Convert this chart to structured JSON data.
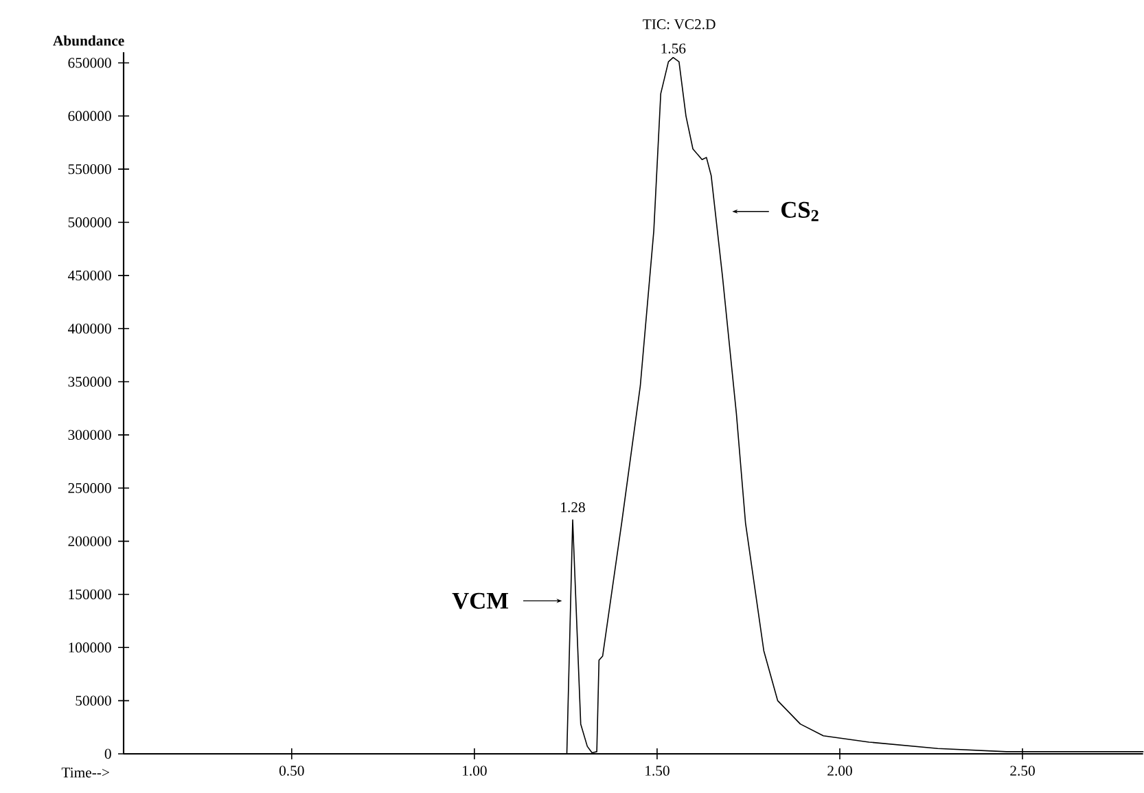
{
  "chart_data": {
    "type": "line",
    "title": "TIC: VC2.D",
    "xlabel": "Time-->",
    "ylabel": "Abundance",
    "x": [
      0.04,
      1.253,
      1.269,
      1.291,
      1.309,
      1.322,
      1.335,
      1.341,
      1.351,
      1.403,
      1.454,
      1.491,
      1.51,
      1.531,
      1.544,
      1.56,
      1.579,
      1.598,
      1.623,
      1.635,
      1.648,
      1.679,
      1.717,
      1.742,
      1.792,
      1.83,
      1.892,
      1.955,
      2.08,
      2.268,
      2.456,
      2.83
    ],
    "series": [
      {
        "color": "#000000",
        "values": [
          0,
          0,
          220000,
          28000,
          7000,
          1000,
          2000,
          88000,
          92000,
          217000,
          346000,
          492000,
          621000,
          651000,
          655000,
          651000,
          600000,
          569000,
          559000,
          561000,
          544000,
          449000,
          320000,
          217000,
          97000,
          50000,
          28000,
          17000,
          11000,
          5000,
          2000,
          2000
        ]
      }
    ],
    "xlim": [
      0.04,
      2.83
    ],
    "ylim": [
      0,
      660000
    ],
    "xticks": [
      {
        "value": 0.5,
        "label": "0.50"
      },
      {
        "value": 1.0,
        "label": "1.00"
      },
      {
        "value": 1.5,
        "label": "1.50"
      },
      {
        "value": 2.0,
        "label": "2.00"
      },
      {
        "value": 2.5,
        "label": "2.50"
      }
    ],
    "yticks": [
      0,
      50000,
      100000,
      150000,
      200000,
      250000,
      300000,
      350000,
      400000,
      450000,
      500000,
      550000,
      600000,
      650000
    ],
    "annotations": [
      {
        "text": "1.28",
        "x": 1.269,
        "y": 220000
      },
      {
        "text": "1.56",
        "x": 1.544,
        "y": 655000
      },
      "VCM",
      "CS$_{2}$"
    ],
    "marker": "none",
    "line_style": "solid"
  }
}
